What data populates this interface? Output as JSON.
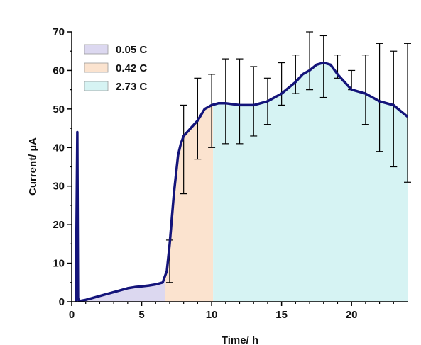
{
  "chart_data": {
    "type": "line",
    "xlabel": "Time/ h",
    "ylabel": "Current/ µA",
    "xlim": [
      0,
      24
    ],
    "ylim": [
      0,
      70
    ],
    "x_ticks": [
      0,
      5,
      10,
      15,
      20
    ],
    "y_ticks": [
      0,
      10,
      20,
      30,
      40,
      50,
      60,
      70
    ],
    "legend_position": "top-left",
    "regions": [
      {
        "name": "0.05 C",
        "x": [
          0.4,
          6.7
        ],
        "color": "#dcd8f0"
      },
      {
        "name": "0.42 C",
        "x": [
          6.7,
          10.1
        ],
        "color": "#fbe3cf"
      },
      {
        "name": "2.73 C",
        "x": [
          10.1,
          24
        ],
        "color": "#d6f3f3"
      }
    ],
    "series": [
      {
        "color": "#14147a",
        "x": [
          0.3,
          0.4,
          0.45,
          0.5,
          0.6,
          1,
          1.5,
          2,
          2.5,
          3,
          3.5,
          4,
          4.5,
          5,
          5.5,
          6,
          6.5,
          6.8,
          7,
          7.3,
          7.6,
          7.8,
          8,
          8.5,
          9,
          9.5,
          10,
          10.5,
          11,
          12,
          13,
          14,
          15,
          16,
          16.5,
          17,
          17.5,
          18,
          18.5,
          19,
          19.5,
          20,
          21,
          22,
          23,
          23.5,
          24
        ],
        "values": [
          0,
          44,
          1,
          0.3,
          0.2,
          0.5,
          1,
          1.5,
          2,
          2.5,
          3,
          3.5,
          3.8,
          4,
          4.2,
          4.5,
          5,
          8,
          15,
          28,
          38,
          41,
          43,
          45,
          47,
          50,
          51,
          51.5,
          51.5,
          51,
          51,
          52,
          54,
          57,
          59,
          60,
          61.5,
          62,
          61.5,
          59,
          57,
          55,
          54,
          52,
          51,
          49.5,
          48
        ]
      }
    ],
    "error_bars": [
      {
        "x": 7,
        "low": 5,
        "high": 16
      },
      {
        "x": 8,
        "low": 28,
        "high": 51
      },
      {
        "x": 9,
        "low": 37,
        "high": 58
      },
      {
        "x": 10,
        "low": 40,
        "high": 59
      },
      {
        "x": 11,
        "low": 41,
        "high": 63
      },
      {
        "x": 12,
        "low": 41,
        "high": 63
      },
      {
        "x": 13,
        "low": 43,
        "high": 61
      },
      {
        "x": 14,
        "low": 46,
        "high": 58
      },
      {
        "x": 15,
        "low": 51,
        "high": 62
      },
      {
        "x": 16,
        "low": 54,
        "high": 64
      },
      {
        "x": 17,
        "low": 55,
        "high": 70
      },
      {
        "x": 18,
        "low": 53,
        "high": 69
      },
      {
        "x": 19,
        "low": 58,
        "high": 64
      },
      {
        "x": 20,
        "low": 55,
        "high": 60
      },
      {
        "x": 21,
        "low": 46,
        "high": 64
      },
      {
        "x": 22,
        "low": 39,
        "high": 67
      },
      {
        "x": 23,
        "low": 35,
        "high": 65
      },
      {
        "x": 24,
        "low": 31,
        "high": 67
      }
    ]
  }
}
